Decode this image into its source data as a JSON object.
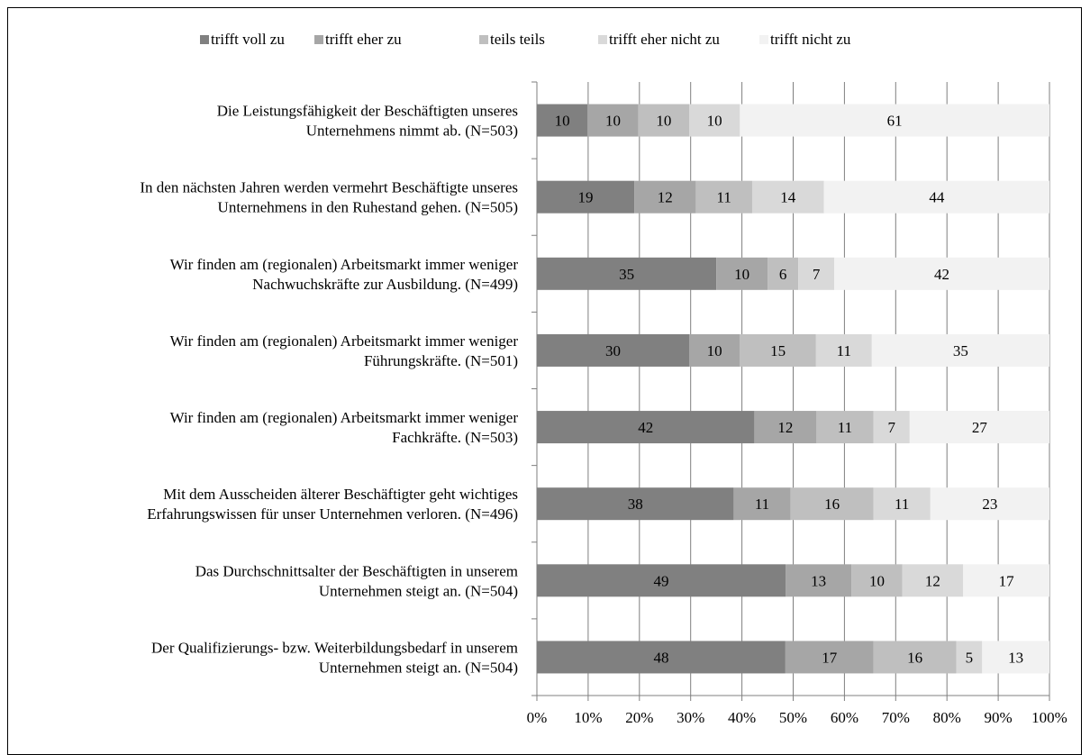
{
  "chart_data": {
    "type": "bar",
    "orientation": "horizontal",
    "stacked": true,
    "percent": true,
    "legend_position": "top",
    "xticks": [
      "0%",
      "10%",
      "20%",
      "30%",
      "40%",
      "50%",
      "60%",
      "70%",
      "80%",
      "90%",
      "100%"
    ],
    "grid": true,
    "categories": [
      "Die Leistungsfähigkeit der Beschäftigten unseres Unternehmens nimmt ab. (N=503)",
      "In den nächsten Jahren werden vermehrt Beschäftigte unseres Unternehmens in den Ruhestand gehen. (N=505)",
      "Wir finden am (regionalen) Arbeitsmarkt immer weniger Nachwuchskräfte zur Ausbildung. (N=499)",
      "Wir finden am (regionalen) Arbeitsmarkt immer weniger Führungskräfte. (N=501)",
      "Wir finden am (regionalen) Arbeitsmarkt immer weniger Fachkräfte. (N=503)",
      "Mit dem Ausscheiden älterer Beschäftigter geht wichtiges Erfahrungswissen für unser Unternehmen verloren. (N=496)",
      "Das Durchschnittsalter der Beschäftigten in unserem Unternehmen steigt an. (N=504)",
      "Der Qualifizierungs- bzw. Weiterbildungsbedarf in unserem Unternehmen steigt an. (N=504)"
    ],
    "category_lines": [
      [
        "Die Leistungsfähigkeit der Beschäftigten unseres",
        "Unternehmens nimmt ab. (N=503)"
      ],
      [
        "In den nächsten Jahren werden vermehrt Beschäftigte unseres",
        "Unternehmens in den Ruhestand gehen. (N=505)"
      ],
      [
        "Wir finden am (regionalen)  Arbeitsmarkt immer weniger",
        "Nachwuchskräfte zur Ausbildung. (N=499)"
      ],
      [
        "Wir finden am (regionalen)  Arbeitsmarkt immer weniger",
        "Führungskräfte. (N=501)"
      ],
      [
        "Wir finden am (regionalen)  Arbeitsmarkt immer weniger",
        "Fachkräfte. (N=503)"
      ],
      [
        "Mit dem Ausscheiden älterer Beschäftigter geht wichtiges",
        "Erfahrungswissen für unser Unternehmen verloren. (N=496)"
      ],
      [
        "Das Durchschnittsalter der Beschäftigten in unserem",
        "Unternehmen steigt an. (N=504)"
      ],
      [
        "Der Qualifizierungs-  bzw. Weiterbildungsbedarf in unserem",
        "Unternehmen steigt an. (N=504)"
      ]
    ],
    "series": [
      {
        "name": "trifft voll zu",
        "color": "#808080",
        "values": [
          10,
          19,
          35,
          30,
          42,
          38,
          49,
          48
        ]
      },
      {
        "name": "trifft eher zu",
        "color": "#a6a6a6",
        "values": [
          10,
          12,
          10,
          10,
          12,
          11,
          13,
          17
        ]
      },
      {
        "name": "teils teils",
        "color": "#bfbfbf",
        "values": [
          10,
          11,
          6,
          15,
          11,
          16,
          10,
          16
        ]
      },
      {
        "name": "trifft eher nicht zu",
        "color": "#d9d9d9",
        "values": [
          10,
          14,
          7,
          11,
          7,
          11,
          12,
          5
        ]
      },
      {
        "name": "trifft nicht zu",
        "color": "#f2f2f2",
        "values": [
          61,
          44,
          42,
          35,
          27,
          23,
          17,
          13
        ]
      }
    ]
  }
}
